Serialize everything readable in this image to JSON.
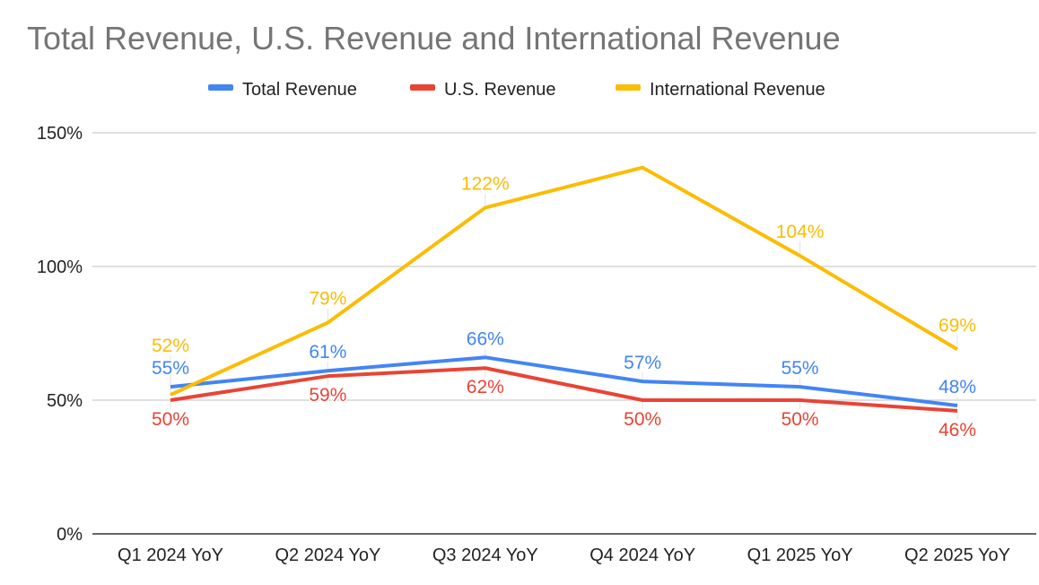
{
  "chart_data": {
    "type": "line",
    "title": "Total Revenue, U.S. Revenue and International Revenue",
    "xlabel": "",
    "ylabel": "",
    "categories": [
      "Q1 2024 YoY",
      "Q2 2024 YoY",
      "Q3 2024 YoY",
      "Q4 2024 YoY",
      "Q1 2025 YoY",
      "Q2 2025 YoY"
    ],
    "ylim": [
      0,
      150
    ],
    "yticks": [
      0,
      50,
      100,
      150
    ],
    "ytick_labels": [
      "0%",
      "50%",
      "100%",
      "150%"
    ],
    "grid": true,
    "legend_position": "top-center",
    "series": [
      {
        "name": "Total Revenue",
        "color": "#4285f4",
        "values": [
          55,
          61,
          66,
          57,
          55,
          48
        ],
        "labels": [
          "55%",
          "61%",
          "66%",
          "57%",
          "55%",
          "48%"
        ]
      },
      {
        "name": "U.S. Revenue",
        "color": "#ea4335",
        "values": [
          50,
          59,
          62,
          50,
          50,
          46
        ],
        "labels": [
          "50%",
          "59%",
          "62%",
          "50%",
          "50%",
          "46%"
        ]
      },
      {
        "name": "International Revenue",
        "color": "#fbbc04",
        "values": [
          52,
          79,
          122,
          137,
          104,
          69
        ],
        "labels": [
          "52%",
          "79%",
          "122%",
          null,
          "104%",
          "69%"
        ]
      }
    ]
  }
}
